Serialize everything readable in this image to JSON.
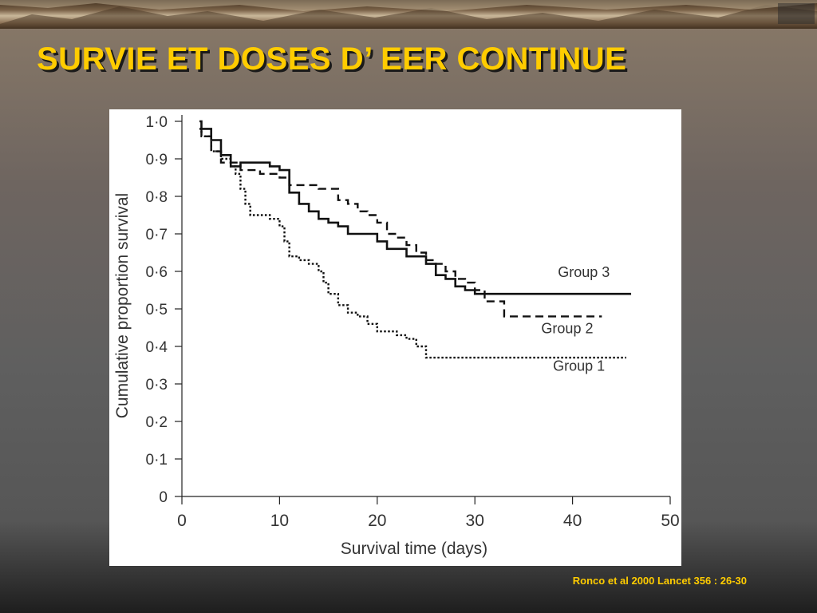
{
  "slide": {
    "title": "SURVIE ET DOSES D’ EER CONTINUE",
    "citation": "Ronco et al 2000 Lancet 356 : 26-30",
    "title_color": "#ffcc00"
  },
  "chart_data": {
    "type": "line",
    "title": "",
    "xlabel": "Survival time (days)",
    "ylabel": "Cumulative proportion survival",
    "xlim": [
      0,
      50
    ],
    "ylim": [
      0,
      1.0
    ],
    "xticks": [
      0,
      10,
      20,
      30,
      40,
      50
    ],
    "yticks": [
      0,
      0.1,
      0.2,
      0.3,
      0.4,
      0.5,
      0.6,
      0.7,
      0.8,
      0.9,
      1.0
    ],
    "ytick_labels": [
      "0",
      "0·1",
      "0·2",
      "0·3",
      "0·4",
      "0·5",
      "0·6",
      "0·7",
      "0·8",
      "0·9",
      "1·0"
    ],
    "xtick_labels": [
      "0",
      "10",
      "20",
      "30",
      "40",
      "50"
    ],
    "grid": false,
    "series": [
      {
        "name": "Group 1",
        "style": "dotted",
        "points": [
          [
            1.8,
            0.98
          ],
          [
            2,
            0.96
          ],
          [
            3,
            0.92
          ],
          [
            4,
            0.9
          ],
          [
            5,
            0.88
          ],
          [
            5.5,
            0.86
          ],
          [
            6,
            0.82
          ],
          [
            6.5,
            0.78
          ],
          [
            7,
            0.75
          ],
          [
            9,
            0.74
          ],
          [
            10,
            0.72
          ],
          [
            10.5,
            0.68
          ],
          [
            11,
            0.64
          ],
          [
            12,
            0.63
          ],
          [
            13,
            0.62
          ],
          [
            14,
            0.6
          ],
          [
            14.5,
            0.57
          ],
          [
            15,
            0.54
          ],
          [
            16,
            0.51
          ],
          [
            17,
            0.49
          ],
          [
            18,
            0.48
          ],
          [
            19,
            0.46
          ],
          [
            20,
            0.44
          ],
          [
            21,
            0.44
          ],
          [
            22,
            0.43
          ],
          [
            23,
            0.42
          ],
          [
            24,
            0.4
          ],
          [
            25,
            0.37
          ],
          [
            30,
            0.37
          ],
          [
            35,
            0.37
          ],
          [
            45.5,
            0.37
          ]
        ]
      },
      {
        "name": "Group 2",
        "style": "dashed",
        "points": [
          [
            1.8,
            0.98
          ],
          [
            2,
            0.96
          ],
          [
            3,
            0.92
          ],
          [
            4,
            0.89
          ],
          [
            6,
            0.87
          ],
          [
            8,
            0.86
          ],
          [
            10,
            0.85
          ],
          [
            11,
            0.83
          ],
          [
            14,
            0.82
          ],
          [
            16,
            0.79
          ],
          [
            17,
            0.78
          ],
          [
            18,
            0.76
          ],
          [
            19,
            0.75
          ],
          [
            20,
            0.73
          ],
          [
            21,
            0.7
          ],
          [
            22,
            0.69
          ],
          [
            23,
            0.67
          ],
          [
            24,
            0.65
          ],
          [
            25,
            0.63
          ],
          [
            26,
            0.62
          ],
          [
            27,
            0.6
          ],
          [
            28,
            0.58
          ],
          [
            29,
            0.57
          ],
          [
            30,
            0.55
          ],
          [
            31,
            0.52
          ],
          [
            33,
            0.48
          ],
          [
            38,
            0.48
          ],
          [
            43,
            0.48
          ]
        ]
      },
      {
        "name": "Group 3",
        "style": "solid",
        "points": [
          [
            1.8,
            1.0
          ],
          [
            2,
            0.98
          ],
          [
            3,
            0.95
          ],
          [
            4,
            0.91
          ],
          [
            5,
            0.88
          ],
          [
            6,
            0.89
          ],
          [
            9,
            0.88
          ],
          [
            10,
            0.87
          ],
          [
            11,
            0.81
          ],
          [
            12,
            0.78
          ],
          [
            13,
            0.76
          ],
          [
            14,
            0.74
          ],
          [
            15,
            0.73
          ],
          [
            16,
            0.72
          ],
          [
            17,
            0.7
          ],
          [
            20,
            0.68
          ],
          [
            21,
            0.66
          ],
          [
            23,
            0.64
          ],
          [
            25,
            0.62
          ],
          [
            26,
            0.59
          ],
          [
            27,
            0.58
          ],
          [
            28,
            0.56
          ],
          [
            29,
            0.55
          ],
          [
            30,
            0.54
          ],
          [
            35,
            0.54
          ],
          [
            46,
            0.54
          ]
        ]
      }
    ],
    "annotations": [
      {
        "text": "Group 3",
        "x": 38.5,
        "y": 0.585
      },
      {
        "text": "Group 2",
        "x": 36.8,
        "y": 0.435
      },
      {
        "text": "Group 1",
        "x": 38.0,
        "y": 0.335
      }
    ]
  }
}
